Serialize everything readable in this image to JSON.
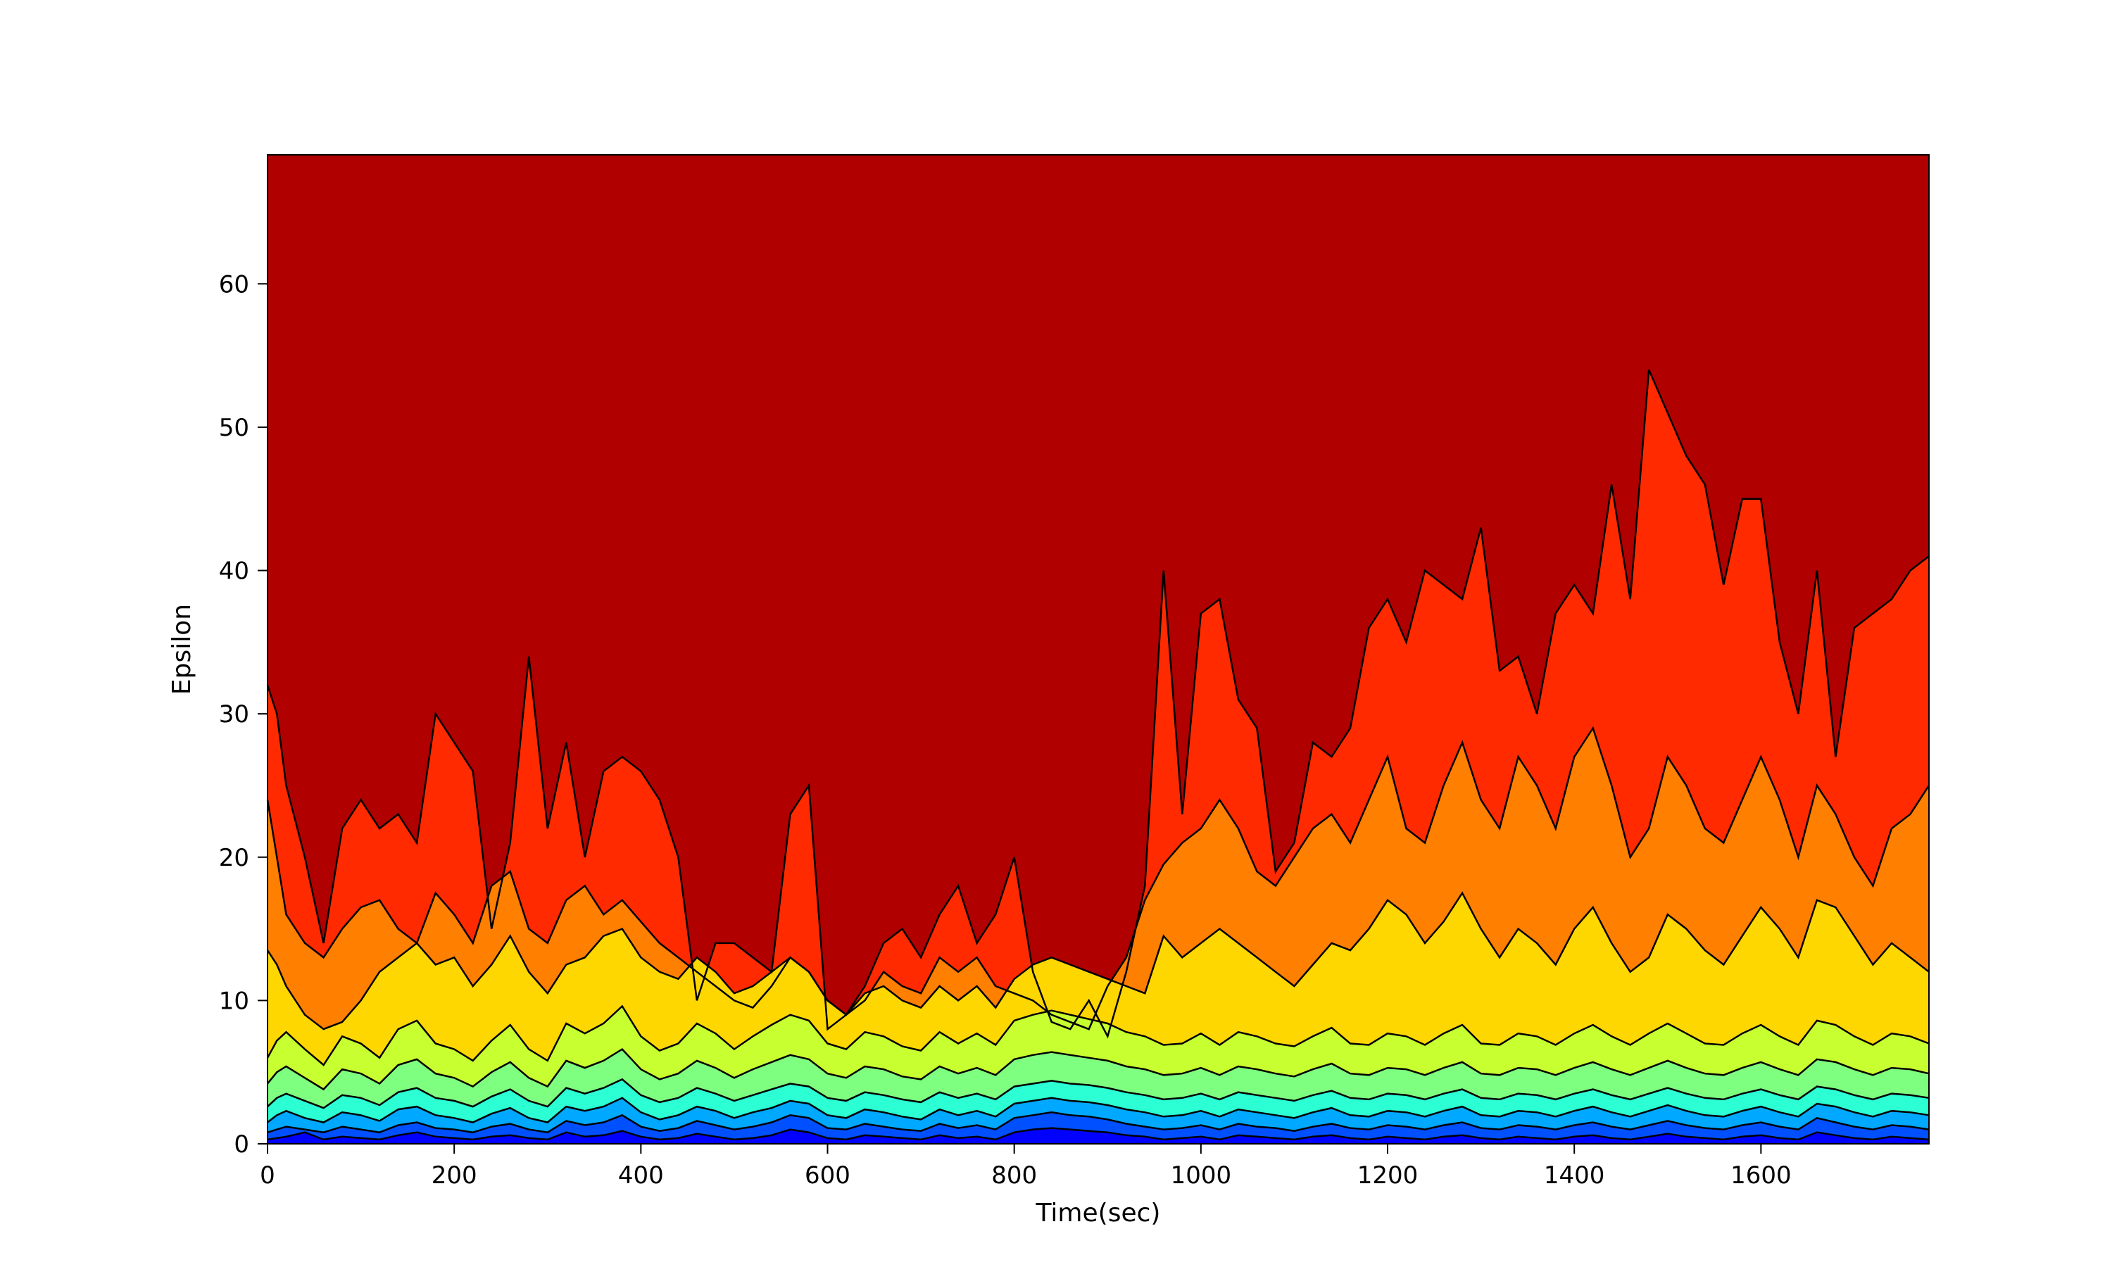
{
  "chart_data": {
    "type": "filled-contour",
    "xlabel": "Time(sec)",
    "ylabel": "Epsilon",
    "xlim": [
      0,
      1780
    ],
    "ylim": [
      0,
      69
    ],
    "x_ticks": [
      0,
      200,
      400,
      600,
      800,
      1000,
      1200,
      1400,
      1600
    ],
    "y_ticks": [
      0,
      10,
      20,
      30,
      40,
      50,
      60
    ],
    "grid": false,
    "legend": "none",
    "colormap": "jet",
    "level_colors": [
      "#0000ff",
      "#0050ff",
      "#00a8ff",
      "#2bffd3",
      "#7fff7f",
      "#c8ff30",
      "#ffd700",
      "#ff7f00",
      "#ff2a00",
      "#b00000"
    ],
    "time": [
      0,
      10,
      20,
      40,
      60,
      80,
      100,
      120,
      140,
      160,
      180,
      200,
      220,
      240,
      260,
      280,
      300,
      320,
      340,
      360,
      380,
      400,
      420,
      440,
      460,
      480,
      500,
      520,
      540,
      560,
      580,
      600,
      620,
      640,
      660,
      680,
      700,
      720,
      740,
      760,
      780,
      800,
      820,
      840,
      860,
      880,
      900,
      920,
      940,
      960,
      980,
      1000,
      1020,
      1040,
      1060,
      1080,
      1100,
      1120,
      1140,
      1160,
      1180,
      1200,
      1220,
      1240,
      1260,
      1280,
      1300,
      1320,
      1340,
      1360,
      1380,
      1400,
      1420,
      1440,
      1460,
      1480,
      1500,
      1520,
      1540,
      1560,
      1580,
      1600,
      1620,
      1640,
      1660,
      1680,
      1700,
      1720,
      1740,
      1760,
      1780
    ],
    "contour_boundaries": [
      {
        "level": 1,
        "values": [
          0.3,
          0.4,
          0.5,
          0.8,
          0.3,
          0.5,
          0.4,
          0.3,
          0.6,
          0.8,
          0.5,
          0.4,
          0.3,
          0.5,
          0.6,
          0.4,
          0.3,
          0.8,
          0.5,
          0.6,
          0.9,
          0.5,
          0.3,
          0.4,
          0.7,
          0.5,
          0.3,
          0.4,
          0.6,
          1.0,
          0.8,
          0.4,
          0.3,
          0.6,
          0.5,
          0.4,
          0.3,
          0.6,
          0.4,
          0.5,
          0.3,
          0.8,
          1.0,
          1.1,
          1.0,
          0.9,
          0.8,
          0.6,
          0.5,
          0.3,
          0.4,
          0.5,
          0.3,
          0.6,
          0.5,
          0.4,
          0.3,
          0.5,
          0.6,
          0.4,
          0.3,
          0.5,
          0.4,
          0.3,
          0.5,
          0.6,
          0.4,
          0.3,
          0.5,
          0.4,
          0.3,
          0.5,
          0.6,
          0.4,
          0.3,
          0.5,
          0.7,
          0.5,
          0.4,
          0.3,
          0.5,
          0.6,
          0.4,
          0.3,
          0.8,
          0.6,
          0.4,
          0.3,
          0.5,
          0.4,
          0.3
        ]
      },
      {
        "level": 2,
        "values": [
          0.8,
          1.0,
          1.2,
          1.0,
          0.8,
          1.2,
          1.0,
          0.8,
          1.3,
          1.5,
          1.1,
          1.0,
          0.8,
          1.2,
          1.4,
          1.0,
          0.8,
          1.6,
          1.3,
          1.5,
          2.0,
          1.2,
          0.9,
          1.1,
          1.6,
          1.3,
          1.0,
          1.2,
          1.5,
          2.0,
          1.8,
          1.1,
          1.0,
          1.4,
          1.2,
          1.0,
          0.9,
          1.4,
          1.1,
          1.3,
          1.0,
          1.8,
          2.0,
          2.2,
          2.0,
          1.9,
          1.7,
          1.4,
          1.2,
          1.0,
          1.1,
          1.3,
          1.0,
          1.4,
          1.2,
          1.1,
          0.9,
          1.2,
          1.4,
          1.1,
          1.0,
          1.3,
          1.2,
          1.0,
          1.3,
          1.5,
          1.1,
          1.0,
          1.3,
          1.2,
          1.0,
          1.3,
          1.5,
          1.2,
          1.0,
          1.3,
          1.6,
          1.3,
          1.1,
          1.0,
          1.3,
          1.5,
          1.2,
          1.0,
          1.8,
          1.5,
          1.2,
          1.0,
          1.3,
          1.2,
          1.0
        ]
      },
      {
        "level": 3,
        "values": [
          1.5,
          2.0,
          2.3,
          1.8,
          1.5,
          2.2,
          2.0,
          1.6,
          2.4,
          2.6,
          2.0,
          1.8,
          1.5,
          2.1,
          2.5,
          1.8,
          1.5,
          2.6,
          2.3,
          2.6,
          3.2,
          2.2,
          1.7,
          2.0,
          2.6,
          2.3,
          1.8,
          2.2,
          2.5,
          3.0,
          2.8,
          2.0,
          1.8,
          2.4,
          2.2,
          1.9,
          1.7,
          2.4,
          2.0,
          2.3,
          1.9,
          2.8,
          3.0,
          3.2,
          3.0,
          2.9,
          2.7,
          2.4,
          2.2,
          1.9,
          2.0,
          2.3,
          1.9,
          2.4,
          2.2,
          2.0,
          1.8,
          2.2,
          2.5,
          2.0,
          1.9,
          2.3,
          2.2,
          1.9,
          2.3,
          2.6,
          2.0,
          1.9,
          2.3,
          2.2,
          1.9,
          2.3,
          2.6,
          2.2,
          1.9,
          2.3,
          2.7,
          2.3,
          2.0,
          1.9,
          2.3,
          2.6,
          2.2,
          1.9,
          2.8,
          2.6,
          2.2,
          1.9,
          2.3,
          2.2,
          2.0
        ]
      },
      {
        "level": 4,
        "values": [
          2.6,
          3.2,
          3.5,
          3.0,
          2.5,
          3.4,
          3.2,
          2.7,
          3.6,
          3.9,
          3.2,
          3.0,
          2.6,
          3.3,
          3.8,
          3.0,
          2.6,
          3.9,
          3.5,
          3.9,
          4.5,
          3.4,
          2.9,
          3.2,
          3.9,
          3.5,
          3.0,
          3.4,
          3.8,
          4.2,
          4.0,
          3.2,
          3.0,
          3.6,
          3.4,
          3.1,
          2.9,
          3.6,
          3.2,
          3.5,
          3.1,
          4.0,
          4.2,
          4.4,
          4.2,
          4.1,
          3.9,
          3.6,
          3.4,
          3.1,
          3.2,
          3.5,
          3.1,
          3.6,
          3.4,
          3.2,
          3.0,
          3.4,
          3.7,
          3.2,
          3.1,
          3.5,
          3.4,
          3.1,
          3.5,
          3.8,
          3.2,
          3.1,
          3.5,
          3.4,
          3.1,
          3.5,
          3.8,
          3.4,
          3.1,
          3.5,
          3.9,
          3.5,
          3.2,
          3.1,
          3.5,
          3.8,
          3.4,
          3.1,
          4.0,
          3.8,
          3.4,
          3.1,
          3.5,
          3.4,
          3.2
        ]
      },
      {
        "level": 5,
        "values": [
          4.2,
          5.0,
          5.4,
          4.6,
          3.8,
          5.2,
          4.9,
          4.2,
          5.5,
          5.9,
          4.9,
          4.6,
          4.0,
          5.0,
          5.7,
          4.6,
          4.0,
          5.8,
          5.3,
          5.8,
          6.6,
          5.2,
          4.5,
          4.9,
          5.8,
          5.3,
          4.6,
          5.2,
          5.7,
          6.2,
          5.9,
          4.9,
          4.6,
          5.4,
          5.2,
          4.7,
          4.5,
          5.4,
          4.9,
          5.3,
          4.8,
          5.9,
          6.2,
          6.4,
          6.2,
          6.0,
          5.8,
          5.4,
          5.2,
          4.8,
          4.9,
          5.3,
          4.8,
          5.4,
          5.2,
          4.9,
          4.7,
          5.2,
          5.6,
          4.9,
          4.8,
          5.3,
          5.2,
          4.8,
          5.3,
          5.7,
          4.9,
          4.8,
          5.3,
          5.2,
          4.8,
          5.3,
          5.7,
          5.2,
          4.8,
          5.3,
          5.8,
          5.3,
          4.9,
          4.8,
          5.3,
          5.7,
          5.2,
          4.8,
          5.9,
          5.7,
          5.2,
          4.8,
          5.3,
          5.2,
          4.9
        ]
      },
      {
        "level": 6,
        "values": [
          6.0,
          7.2,
          7.8,
          6.6,
          5.5,
          7.5,
          7.0,
          6.0,
          8.0,
          8.6,
          7.0,
          6.6,
          5.8,
          7.2,
          8.3,
          6.6,
          5.8,
          8.4,
          7.7,
          8.4,
          9.6,
          7.5,
          6.5,
          7.0,
          8.4,
          7.7,
          6.6,
          7.5,
          8.3,
          9.0,
          8.6,
          7.0,
          6.6,
          7.8,
          7.5,
          6.8,
          6.5,
          7.8,
          7.0,
          7.7,
          6.9,
          8.6,
          9.0,
          9.3,
          9.0,
          8.7,
          8.4,
          7.8,
          7.5,
          6.9,
          7.0,
          7.7,
          6.9,
          7.8,
          7.5,
          7.0,
          6.8,
          7.5,
          8.1,
          7.0,
          6.9,
          7.7,
          7.5,
          6.9,
          7.7,
          8.3,
          7.0,
          6.9,
          7.7,
          7.5,
          6.9,
          7.7,
          8.3,
          7.5,
          6.9,
          7.7,
          8.4,
          7.7,
          7.0,
          6.9,
          7.7,
          8.3,
          7.5,
          6.9,
          8.6,
          8.3,
          7.5,
          6.9,
          7.7,
          7.5,
          7.0
        ]
      },
      {
        "level": 7,
        "values": [
          13.5,
          12.5,
          11.0,
          9.0,
          8.0,
          8.5,
          10.0,
          12.0,
          13.0,
          14.0,
          12.5,
          13.0,
          11.0,
          12.5,
          14.5,
          12.0,
          10.5,
          12.5,
          13.0,
          14.5,
          15.0,
          13.0,
          12.0,
          11.5,
          13.0,
          12.0,
          10.5,
          11.0,
          12.0,
          13.0,
          12.0,
          10.0,
          9.0,
          10.5,
          11.0,
          10.0,
          9.5,
          11.0,
          10.0,
          11.0,
          9.5,
          11.5,
          12.5,
          13.0,
          12.5,
          12.0,
          11.5,
          11.0,
          10.5,
          14.5,
          13.0,
          14.0,
          15.0,
          14.0,
          13.0,
          12.0,
          11.0,
          12.5,
          14.0,
          13.5,
          15.0,
          17.0,
          16.0,
          14.0,
          15.5,
          17.5,
          15.0,
          13.0,
          15.0,
          14.0,
          12.5,
          15.0,
          16.5,
          14.0,
          12.0,
          13.0,
          16.0,
          15.0,
          13.5,
          12.5,
          14.5,
          16.5,
          15.0,
          13.0,
          17.0,
          16.5,
          14.5,
          12.5,
          14.0,
          13.0,
          12.0
        ]
      },
      {
        "level": 8,
        "values": [
          24.0,
          20.0,
          16.0,
          14.0,
          13.0,
          15.0,
          16.5,
          17.0,
          15.0,
          14.0,
          17.5,
          16.0,
          14.0,
          18.0,
          19.0,
          15.0,
          14.0,
          17.0,
          18.0,
          16.0,
          17.0,
          15.5,
          14.0,
          13.0,
          12.0,
          11.0,
          10.0,
          9.5,
          11.0,
          13.0,
          12.0,
          10.0,
          9.0,
          10.0,
          12.0,
          11.0,
          10.5,
          13.0,
          12.0,
          13.0,
          11.0,
          10.5,
          10.0,
          9.0,
          8.5,
          8.0,
          11.0,
          13.0,
          17.0,
          19.5,
          21.0,
          22.0,
          24.0,
          22.0,
          19.0,
          18.0,
          20.0,
          22.0,
          23.0,
          21.0,
          24.0,
          27.0,
          22.0,
          21.0,
          25.0,
          28.0,
          24.0,
          22.0,
          27.0,
          25.0,
          22.0,
          27.0,
          29.0,
          25.0,
          20.0,
          22.0,
          27.0,
          25.0,
          22.0,
          21.0,
          24.0,
          27.0,
          24.0,
          20.0,
          25.0,
          23.0,
          20.0,
          18.0,
          22.0,
          23.0,
          25.0
        ]
      },
      {
        "level": 9,
        "values": [
          32.0,
          30.0,
          25.0,
          20.0,
          14.0,
          22.0,
          24.0,
          22.0,
          23.0,
          21.0,
          30.0,
          28.0,
          26.0,
          15.0,
          21.0,
          34.0,
          22.0,
          28.0,
          20.0,
          26.0,
          27.0,
          26.0,
          24.0,
          20.0,
          10.0,
          14.0,
          14.0,
          13.0,
          12.0,
          23.0,
          25.0,
          8.0,
          9.0,
          11.0,
          14.0,
          15.0,
          13.0,
          16.0,
          18.0,
          14.0,
          16.0,
          20.0,
          12.0,
          8.5,
          8.0,
          10.0,
          7.5,
          12.0,
          18.0,
          40.0,
          23.0,
          37.0,
          38.0,
          31.0,
          29.0,
          19.0,
          21.0,
          28.0,
          27.0,
          29.0,
          36.0,
          38.0,
          35.0,
          40.0,
          39.0,
          38.0,
          43.0,
          33.0,
          34.0,
          30.0,
          37.0,
          39.0,
          37.0,
          46.0,
          38.0,
          54.0,
          51.0,
          48.0,
          46.0,
          39.0,
          45.0,
          45.0,
          35.0,
          30.0,
          40.0,
          27.0,
          36.0,
          37.0,
          38.0,
          40.0,
          41.0
        ]
      }
    ]
  }
}
